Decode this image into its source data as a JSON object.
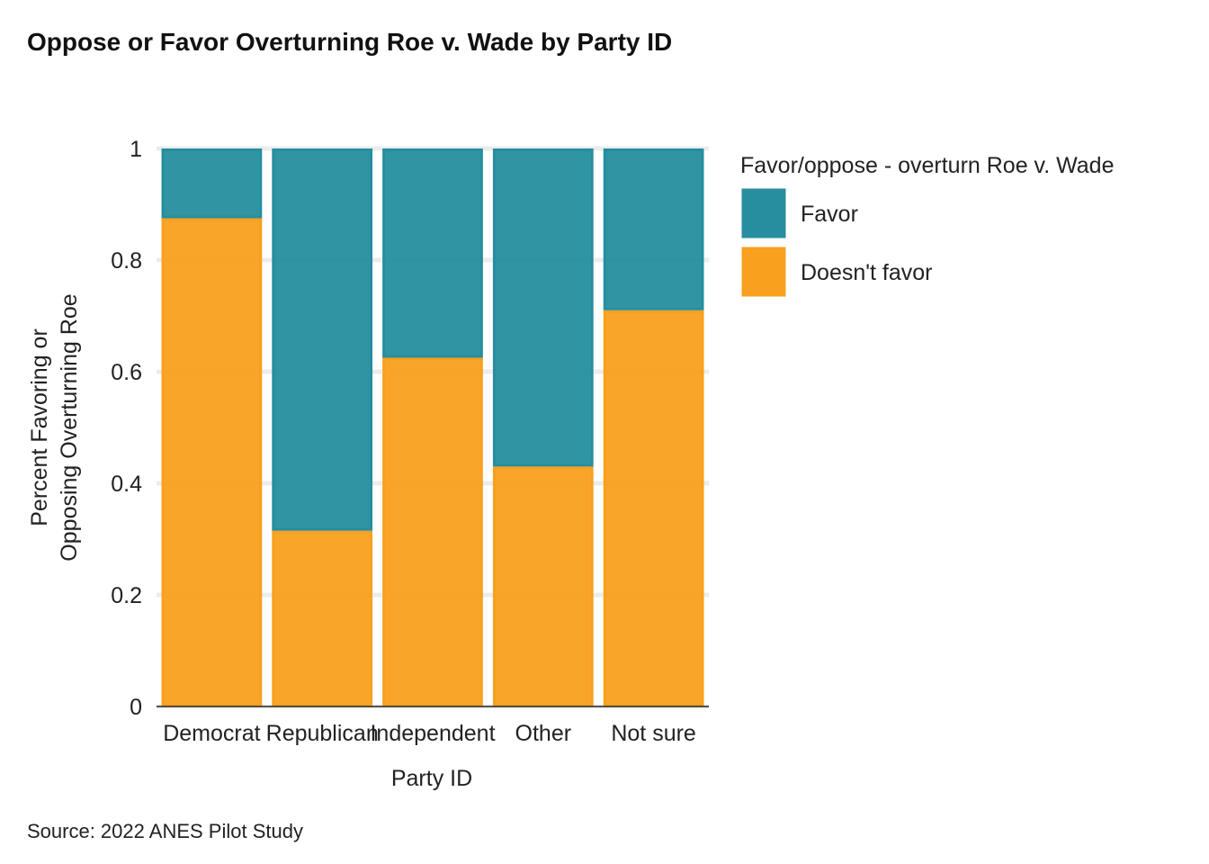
{
  "chart_data": {
    "type": "bar",
    "stacked": true,
    "title": "Oppose or Favor Overturning Roe v. Wade by Party ID",
    "xlabel": "Party ID",
    "ylabel": "Percent Favoring or Opposing Overturning Roe",
    "ylabel_lines": [
      "Percent Favoring or",
      "Opposing Overturning Roe"
    ],
    "caption": "Source: 2022 ANES Pilot Study",
    "categories": [
      "Democrat",
      "Republican",
      "Independent",
      "Other",
      "Not sure"
    ],
    "series": [
      {
        "name": "Favor",
        "color": "#268e9e",
        "values": [
          0.125,
          0.685,
          0.375,
          0.57,
          0.29
        ]
      },
      {
        "name": "Doesn't favor",
        "color": "#f9a01e",
        "values": [
          0.875,
          0.315,
          0.625,
          0.43,
          0.71
        ]
      }
    ],
    "ylim": [
      0,
      1
    ],
    "yticks": [
      0,
      0.2,
      0.4,
      0.6,
      0.8,
      1
    ],
    "ytick_labels": [
      "0",
      "0.2",
      "0.4",
      "0.6",
      "0.8",
      "1"
    ],
    "legend": {
      "title": "Favor/oppose - overturn Roe v. Wade",
      "position": "right"
    },
    "grid": true
  }
}
